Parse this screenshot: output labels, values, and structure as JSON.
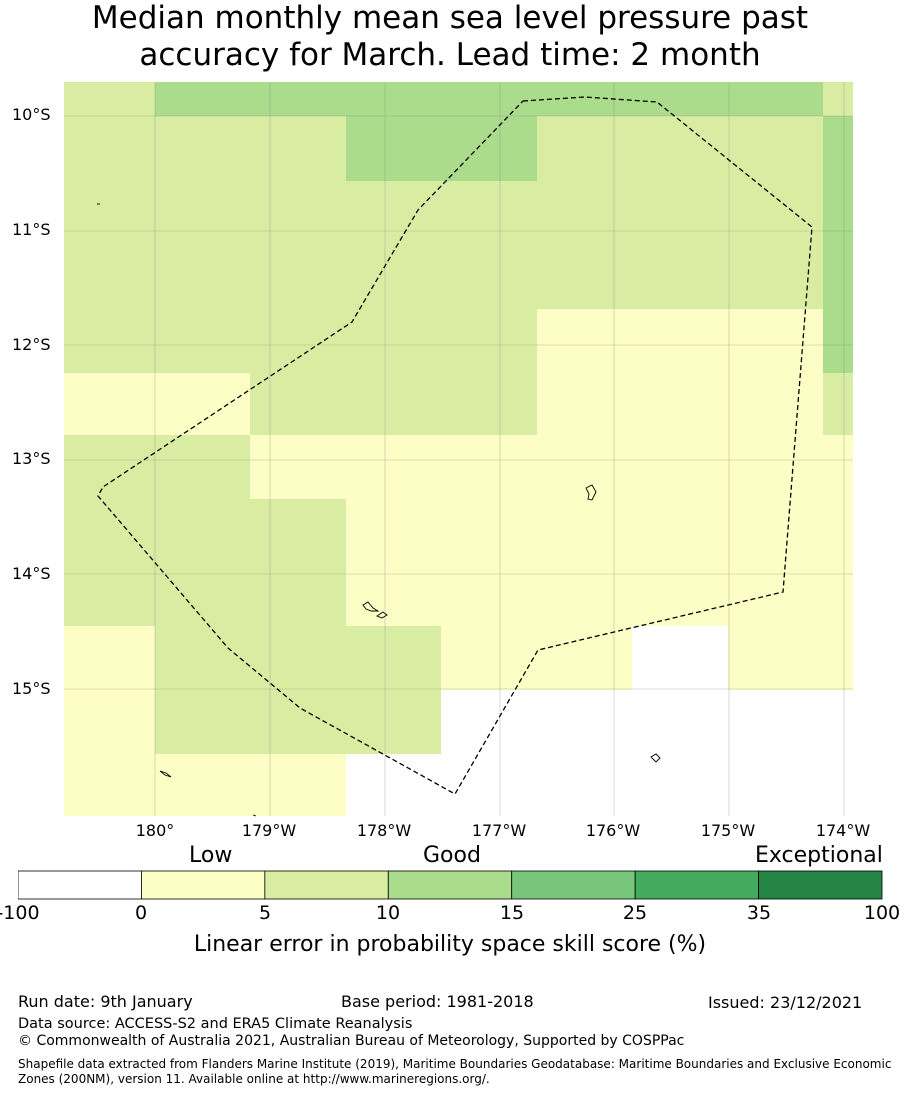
{
  "title": {
    "line1": "Median monthly mean sea level pressure past",
    "line2": "accuracy for March. Lead time: 2 month"
  },
  "map": {
    "lat_labels": [
      "10°S",
      "11°S",
      "12°S",
      "13°S",
      "14°S",
      "15°S"
    ],
    "lon_labels": [
      "180°",
      "179°W",
      "178°W",
      "177°W",
      "176°W",
      "175°W",
      "174°W"
    ],
    "skill_grid_category_index": [
      [
        2,
        3,
        3,
        3,
        3,
        3,
        3,
        3,
        2,
        4
      ],
      [
        2,
        2,
        2,
        3,
        3,
        2,
        2,
        2,
        3,
        3
      ],
      [
        2,
        2,
        2,
        2,
        2,
        2,
        2,
        2,
        3,
        3
      ],
      [
        2,
        2,
        2,
        2,
        2,
        2,
        2,
        2,
        3,
        3
      ],
      [
        2,
        2,
        2,
        2,
        2,
        1,
        1,
        1,
        3,
        3
      ],
      [
        1,
        1,
        2,
        2,
        2,
        1,
        1,
        1,
        2,
        3
      ],
      [
        2,
        2,
        1,
        1,
        1,
        1,
        1,
        1,
        1,
        3
      ],
      [
        2,
        2,
        2,
        1,
        1,
        1,
        1,
        1,
        1,
        1
      ],
      [
        2,
        2,
        2,
        1,
        1,
        1,
        1,
        1,
        1,
        1
      ],
      [
        1,
        2,
        2,
        2,
        1,
        1,
        0,
        1,
        1,
        1
      ],
      [
        1,
        2,
        2,
        2,
        0,
        0,
        0,
        0,
        0,
        1
      ],
      [
        1,
        1,
        1,
        0,
        0,
        0,
        0,
        0,
        0,
        0
      ]
    ]
  },
  "legend": {
    "categories": [
      "Low",
      "Good",
      "Exceptional"
    ],
    "ticks": [
      "-100",
      "0",
      "5",
      "10",
      "15",
      "25",
      "35",
      "100"
    ],
    "colors": [
      "#ffffff",
      "#fdfdc6",
      "#d9eda2",
      "#aadc8c",
      "#78c679",
      "#42ab5d",
      "#238443"
    ],
    "title": "Linear error in probability space skill score (%)"
  },
  "footer": {
    "run_date": "Run date: 9th January",
    "base_period": "Base period: 1981-2018",
    "issued": "Issued: 23/12/2021",
    "data_source": "Data source: ACCESS-S2 and ERA5 Climate Reanalysis",
    "copyright": "© Commonwealth of Australia 2021, Australian Bureau of Meteorology, Supported by COSPPac",
    "shapefile": "Shapefile data extracted from Flanders Marine Institute (2019), Maritime Boundaries Geodatabase: Maritime Boundaries and Exclusive Economic Zones (200NM), version 11. Available online at http://www.marineregions.org/."
  }
}
